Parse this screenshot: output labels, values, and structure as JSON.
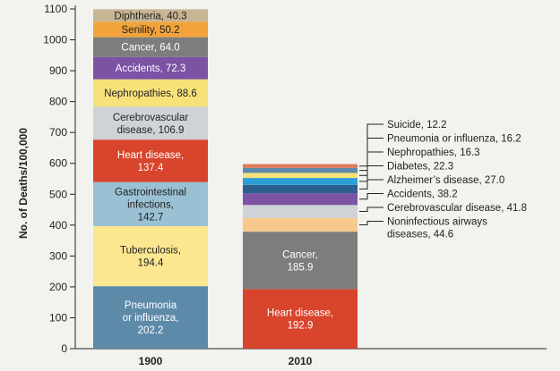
{
  "chart_data": {
    "type": "bar",
    "stacked": true,
    "ylabel": "No. of Deaths/100,000",
    "ylim": [
      0,
      1100
    ],
    "yticks": [
      0,
      100,
      200,
      300,
      400,
      500,
      600,
      700,
      800,
      900,
      1000,
      1100
    ],
    "categories": [
      "1900",
      "2010"
    ],
    "bars": [
      {
        "category": "1900",
        "segments": [
          {
            "name": "Pneumonia or influenza",
            "value": 202.2,
            "label_lines": [
              "Pneumonia",
              "or influenza,",
              "202.2"
            ],
            "color": "#5e8aa9",
            "text_color": "#ffffff"
          },
          {
            "name": "Tuberculosis",
            "value": 194.4,
            "label_lines": [
              "Tuberculosis,",
              "194.4"
            ],
            "color": "#fbe790",
            "text_color": "#222222"
          },
          {
            "name": "Gastrointestinal infections",
            "value": 142.7,
            "label_lines": [
              "Gastrointestinal",
              "infections,",
              "142.7"
            ],
            "color": "#9ac0d4",
            "text_color": "#222222"
          },
          {
            "name": "Heart disease",
            "value": 137.4,
            "label_lines": [
              "Heart disease,",
              "137.4"
            ],
            "color": "#d8442c",
            "text_color": "#ffffff"
          },
          {
            "name": "Cerebrovascular disease",
            "value": 106.9,
            "label_lines": [
              "Cerebrovascular",
              "disease, 106.9"
            ],
            "color": "#cfd3d8",
            "text_color": "#222222"
          },
          {
            "name": "Nephropathies",
            "value": 88.6,
            "label_lines": [
              "Nephropathies, 88.6"
            ],
            "color": "#f7e27a",
            "text_color": "#222222"
          },
          {
            "name": "Accidents",
            "value": 72.3,
            "label_lines": [
              "Accidents, 72.3"
            ],
            "color": "#7b52a4",
            "text_color": "#ffffff"
          },
          {
            "name": "Cancer",
            "value": 64.0,
            "label_lines": [
              "Cancer, 64.0"
            ],
            "color": "#7d7d7d",
            "text_color": "#ffffff"
          },
          {
            "name": "Senility",
            "value": 50.2,
            "label_lines": [
              "Senility, 50.2"
            ],
            "color": "#f2a33a",
            "text_color": "#222222"
          },
          {
            "name": "Diphtheria",
            "value": 40.3,
            "label_lines": [
              "Diphtheria, 40.3"
            ],
            "color": "#c8b593",
            "text_color": "#222222"
          }
        ]
      },
      {
        "category": "2010",
        "segments": [
          {
            "name": "Heart disease",
            "value": 192.9,
            "label_lines": [
              "Heart disease,",
              "192.9"
            ],
            "color": "#d8442c",
            "text_color": "#ffffff"
          },
          {
            "name": "Cancer",
            "value": 185.9,
            "label_lines": [
              "Cancer,",
              "185.9"
            ],
            "color": "#7d7d7d",
            "text_color": "#ffffff"
          },
          {
            "name": "Noninfectious airways diseases",
            "value": 44.6,
            "color": "#f7c98c",
            "annotation": [
              "Noninfectious airways",
              "diseases, 44.6"
            ]
          },
          {
            "name": "Cerebrovascular disease",
            "value": 41.8,
            "color": "#cfd3d8",
            "annotation": [
              "Cerebrovascular disease, 41.8"
            ]
          },
          {
            "name": "Accidents",
            "value": 38.2,
            "color": "#7b52a4",
            "annotation": [
              "Accidents, 38.2"
            ]
          },
          {
            "name": "Alzheimer's disease",
            "value": 27.0,
            "color": "#2c5f8e",
            "annotation": [
              "Alzheimer’s disease, 27.0"
            ]
          },
          {
            "name": "Diabetes",
            "value": 22.3,
            "color": "#2c9fd6",
            "annotation": [
              "Diabetes, 22.3"
            ]
          },
          {
            "name": "Nephropathies",
            "value": 16.3,
            "color": "#f7e27a",
            "annotation": [
              "Nephropathies, 16.3"
            ]
          },
          {
            "name": "Pneumonia or influenza",
            "value": 16.2,
            "color": "#5e8aa9",
            "annotation": [
              "Pneumonia or influenza, 16.2"
            ]
          },
          {
            "name": "Suicide",
            "value": 12.2,
            "color": "#e07a5a",
            "annotation": [
              "Suicide, 12.2"
            ]
          }
        ]
      }
    ],
    "grid": false,
    "legend": "none"
  }
}
